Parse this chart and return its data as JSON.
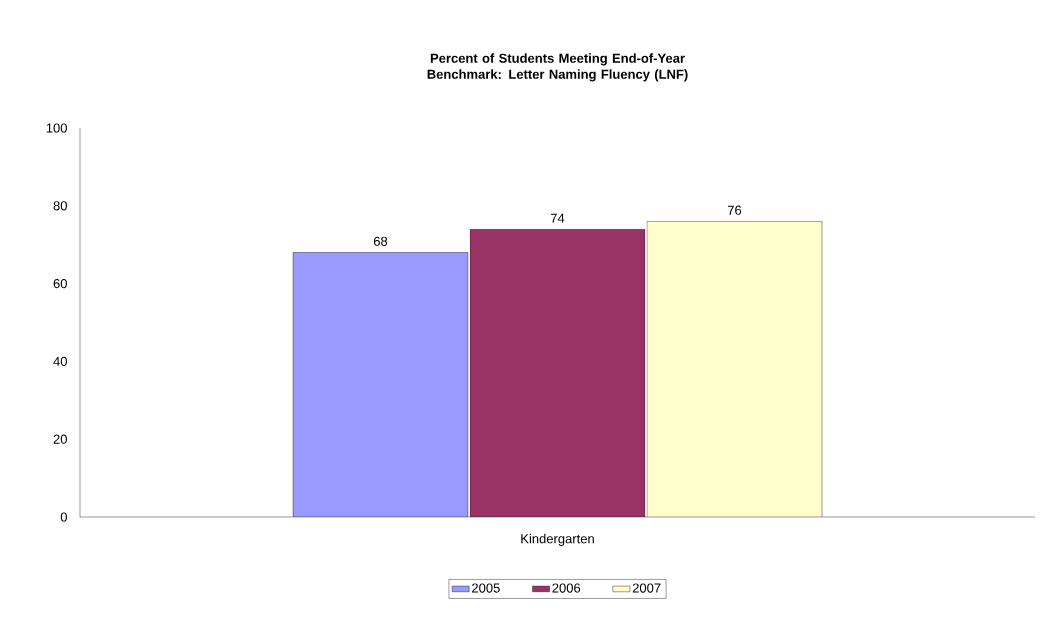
{
  "chart_data": {
    "type": "bar",
    "title": "Percent of Students Meeting End-of-Year Benchmark: Letter Naming Fluency (LNF)",
    "categories": [
      "Kindergarten"
    ],
    "series": [
      {
        "name": "2005",
        "color": "#9999ff",
        "values": [
          68
        ]
      },
      {
        "name": "2006",
        "color": "#993366",
        "values": [
          74
        ]
      },
      {
        "name": "2007",
        "color": "#ffffcc",
        "values": [
          76
        ]
      }
    ],
    "ylim": [
      0,
      100
    ],
    "yticks": [
      0,
      20,
      40,
      60,
      80,
      100
    ],
    "grid": false,
    "legend": "bottom",
    "data_labels": true
  }
}
